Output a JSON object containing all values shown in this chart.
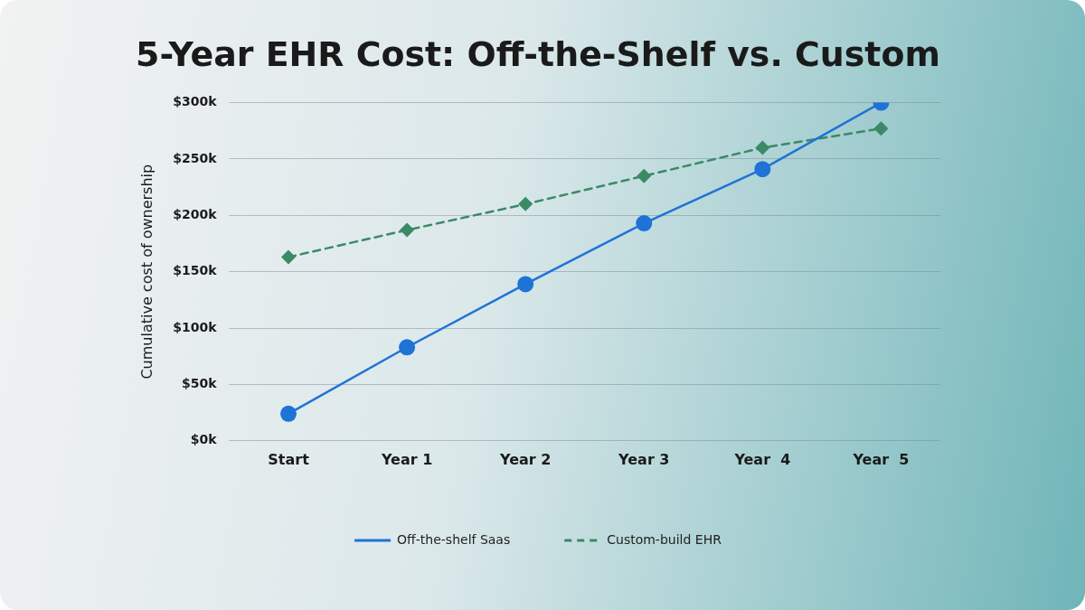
{
  "chart_data": {
    "type": "line",
    "title": "5-Year EHR Cost: Off-the-Shelf vs. Custom",
    "ylabel": "Cumulative cost of ownership",
    "categories": [
      "Start",
      "Year 1",
      "Year 2",
      "Year 3",
      "Year  4",
      "Year  5"
    ],
    "series": [
      {
        "name": "Off-the-shelf Saas",
        "color": "#1f73d6",
        "values": [
          24,
          83,
          139,
          193,
          241,
          300
        ],
        "marker": "circle",
        "line_style": "solid"
      },
      {
        "name": "Custom-build EHR",
        "color": "#3a8a66",
        "values": [
          163,
          187,
          210,
          235,
          260,
          277
        ],
        "marker": "diamond",
        "line_style": "dashed"
      }
    ],
    "ylim": [
      0,
      300
    ],
    "yticks": [
      {
        "value": 0,
        "label": "$0k"
      },
      {
        "value": 50,
        "label": "$50k"
      },
      {
        "value": 100,
        "label": "$100k"
      },
      {
        "value": 150,
        "label": "$150k"
      },
      {
        "value": 200,
        "label": "$200k"
      },
      {
        "value": 250,
        "label": "$250k"
      },
      {
        "value": 300,
        "label": "$300k"
      }
    ],
    "grid": "y",
    "legend": "bottom"
  }
}
